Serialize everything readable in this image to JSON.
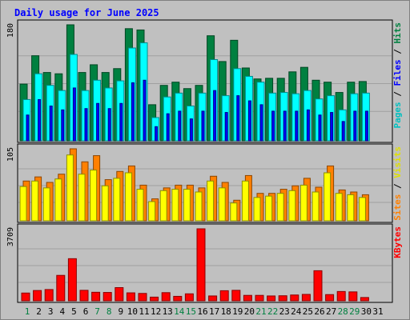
{
  "title": "Daily usage for June 2025",
  "chart_data": [
    {
      "type": "bar",
      "panel": "hits-files-pages",
      "x": [
        1,
        2,
        3,
        4,
        5,
        6,
        7,
        8,
        9,
        10,
        11,
        12,
        13,
        14,
        15,
        16,
        17,
        18,
        19,
        20,
        21,
        22,
        23,
        24,
        25,
        26,
        27,
        28,
        29,
        30
      ],
      "ytick_label": "180",
      "ylim": [
        0,
        180
      ],
      "grid": true,
      "series": [
        {
          "name": "Hits",
          "color": "#008040",
          "values": [
            88,
            132,
            106,
            104,
            180,
            106,
            118,
            106,
            112,
            174,
            172,
            56,
            86,
            91,
            81,
            86,
            163,
            123,
            156,
            113,
            96,
            97,
            97,
            107,
            114,
            94,
            91,
            75,
            91,
            92
          ]
        },
        {
          "name": "Files",
          "color": "#00ffff",
          "values": [
            64,
            104,
            86,
            78,
            134,
            78,
            94,
            82,
            93,
            144,
            152,
            36,
            68,
            74,
            54,
            74,
            126,
            70,
            112,
            100,
            91,
            74,
            75,
            73,
            78,
            65,
            70,
            48,
            73,
            74
          ]
        },
        {
          "name": "Pages",
          "color": "#0000ff",
          "values": [
            40,
            64,
            54,
            48,
            82,
            50,
            58,
            50,
            58,
            90,
            94,
            22,
            42,
            46,
            34,
            46,
            78,
            44,
            70,
            62,
            56,
            46,
            46,
            46,
            48,
            40,
            44,
            30,
            46,
            46
          ]
        }
      ]
    },
    {
      "type": "bar",
      "panel": "sites-visits",
      "x": [
        1,
        2,
        3,
        4,
        5,
        6,
        7,
        8,
        9,
        10,
        11,
        12,
        13,
        14,
        15,
        16,
        17,
        18,
        19,
        20,
        21,
        22,
        23,
        24,
        25,
        26,
        27,
        28,
        29,
        30
      ],
      "ytick_label": "105",
      "ylim": [
        0,
        105
      ],
      "grid": true,
      "series": [
        {
          "name": "Sites",
          "color": "#ff8000",
          "values": [
            58,
            64,
            56,
            68,
            105,
            86,
            95,
            60,
            72,
            80,
            52,
            32,
            48,
            52,
            52,
            48,
            65,
            56,
            30,
            66,
            40,
            40,
            46,
            51,
            62,
            49,
            80,
            45,
            42,
            38
          ]
        },
        {
          "name": "Visits",
          "color": "#ffff00",
          "values": [
            50,
            58,
            48,
            61,
            96,
            68,
            74,
            51,
            62,
            70,
            46,
            28,
            44,
            46,
            46,
            42,
            58,
            48,
            26,
            58,
            34,
            36,
            40,
            44,
            52,
            42,
            70,
            40,
            38,
            34
          ]
        }
      ]
    },
    {
      "type": "bar",
      "panel": "kbytes",
      "x": [
        1,
        2,
        3,
        4,
        5,
        6,
        7,
        8,
        9,
        10,
        11,
        12,
        13,
        14,
        15,
        16,
        17,
        18,
        19,
        20,
        21,
        22,
        23,
        24,
        25,
        26,
        27,
        28,
        29,
        30
      ],
      "ytick_label": "3709",
      "ylim": [
        0,
        3709
      ],
      "grid": true,
      "series": [
        {
          "name": "KBytes",
          "color": "#ff0000",
          "values": [
            400,
            530,
            580,
            1310,
            2170,
            540,
            440,
            430,
            680,
            410,
            380,
            190,
            420,
            230,
            360,
            3709,
            250,
            520,
            540,
            280,
            280,
            250,
            260,
            300,
            330,
            1550,
            320,
            480,
            460,
            170
          ]
        }
      ]
    }
  ],
  "x_labels": [
    {
      "label": "1",
      "weekend": true
    },
    {
      "label": "2",
      "weekend": false
    },
    {
      "label": "3",
      "weekend": false
    },
    {
      "label": "4",
      "weekend": false
    },
    {
      "label": "5",
      "weekend": false
    },
    {
      "label": "6",
      "weekend": false
    },
    {
      "label": "7",
      "weekend": true
    },
    {
      "label": "8",
      "weekend": true
    },
    {
      "label": "9",
      "weekend": false
    },
    {
      "label": "10",
      "weekend": false
    },
    {
      "label": "11",
      "weekend": false
    },
    {
      "label": "12",
      "weekend": false
    },
    {
      "label": "13",
      "weekend": false
    },
    {
      "label": "14",
      "weekend": true
    },
    {
      "label": "15",
      "weekend": true
    },
    {
      "label": "16",
      "weekend": false
    },
    {
      "label": "17",
      "weekend": false
    },
    {
      "label": "18",
      "weekend": false
    },
    {
      "label": "19",
      "weekend": false
    },
    {
      "label": "20",
      "weekend": false
    },
    {
      "label": "21",
      "weekend": true
    },
    {
      "label": "22",
      "weekend": true
    },
    {
      "label": "23",
      "weekend": false
    },
    {
      "label": "24",
      "weekend": false
    },
    {
      "label": "25",
      "weekend": false
    },
    {
      "label": "26",
      "weekend": false
    },
    {
      "label": "27",
      "weekend": false
    },
    {
      "label": "28",
      "weekend": true
    },
    {
      "label": "29",
      "weekend": true
    },
    {
      "label": "30",
      "weekend": false
    },
    {
      "label": "31",
      "weekend": false
    }
  ],
  "right_labels": {
    "top": [
      {
        "text": "Pages",
        "color": "#00c0c0"
      },
      {
        "text": " / ",
        "color": "#000000"
      },
      {
        "text": "Files",
        "color": "#0000ff"
      },
      {
        "text": " / ",
        "color": "#000000"
      },
      {
        "text": "Hits",
        "color": "#008040"
      }
    ],
    "middle": [
      {
        "text": "Sites",
        "color": "#ff8000"
      },
      {
        "text": " / ",
        "color": "#000000"
      },
      {
        "text": "Visits",
        "color": "#e0e000"
      }
    ],
    "bottom": [
      {
        "text": "KBytes",
        "color": "#ff0000"
      }
    ]
  },
  "colors": {
    "background": "#c0c0c0",
    "title": "#0000ff",
    "weekend_label": "#008040",
    "weekday_label": "#000000"
  }
}
